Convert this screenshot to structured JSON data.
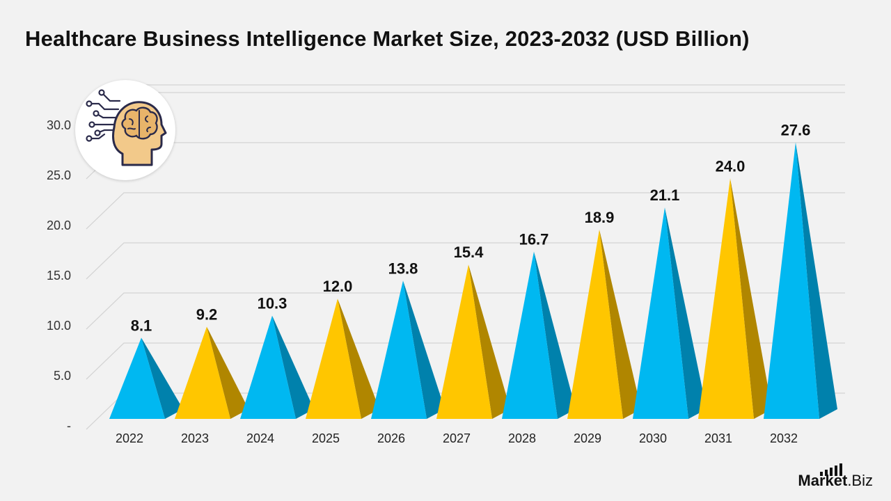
{
  "chart_data": {
    "type": "bar",
    "title": "Healthcare Business Intelligence Market Size, 2023-2032 (USD Billion)",
    "xlabel": "",
    "ylabel": "",
    "categories": [
      "2022",
      "2023",
      "2024",
      "2025",
      "2026",
      "2027",
      "2028",
      "2029",
      "2030",
      "2031",
      "2032"
    ],
    "values": [
      8.1,
      9.2,
      10.3,
      12.0,
      13.8,
      15.4,
      16.7,
      18.9,
      21.1,
      24.0,
      27.6
    ],
    "data_labels": [
      "8.1",
      "9.2",
      "10.3",
      "12.0",
      "13.8",
      "15.4",
      "16.7",
      "18.9",
      "21.1",
      "24.0",
      "27.6"
    ],
    "ylim": [
      0,
      32.5
    ],
    "yticks": [
      0,
      5,
      10,
      15,
      20,
      25,
      30
    ],
    "ytick_labels": [
      "-",
      "5.0",
      "10.0",
      "15.0",
      "20.0",
      "25.0",
      "30.0"
    ],
    "grid": true,
    "legend": "none",
    "bar_shape": "3d-pyramid",
    "colors": {
      "blue": "#00b8f1",
      "blue_shade": "#0081ac",
      "gold": "#ffc600",
      "gold_shade": "#b08600",
      "grid": "#d4d4d4"
    },
    "color_pattern": [
      "blue",
      "gold"
    ]
  },
  "icon": "brain-head-circuit-icon",
  "brand": {
    "name_strong": "Market",
    "name_rest": ".Biz"
  }
}
